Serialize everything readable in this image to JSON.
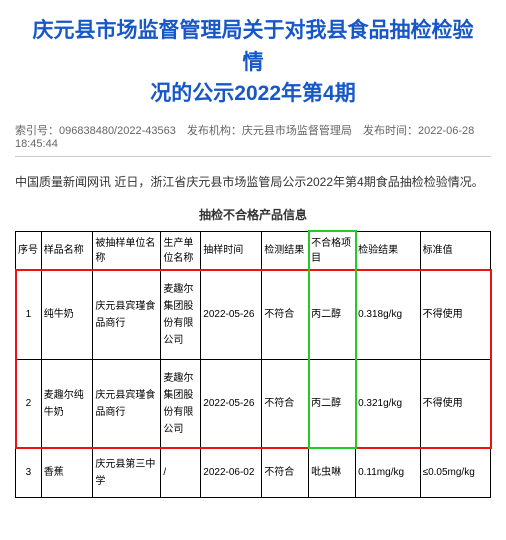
{
  "doc": {
    "title_line1": "庆元县市场监督管理局关于对我县食品抽检检验情",
    "title_line2": "况的公示2022年第4期",
    "index_label": "索引号：",
    "index_value": "096838480/2022-43563",
    "org_label": "发布机构：",
    "org_value": "庆元县市场监督管理局",
    "time_label": "发布时间：",
    "time_value": "2022-06-28 18:45:44",
    "intro": "中国质量新闻网讯 近日，浙江省庆元县市场监管局公示2022年第4期食品抽检检验情况。",
    "table_title": "抽检不合格产品信息"
  },
  "table": {
    "headers": {
      "seq": "序号",
      "name": "样品名称",
      "unit": "被抽样单位名称",
      "prod": "生产单位名称",
      "date": "抽样时间",
      "result": "检测结果",
      "item": "不合格项目",
      "value": "检验结果",
      "standard": "标准值"
    },
    "rows": [
      {
        "seq": "1",
        "name": "纯牛奶",
        "unit": "庆元县宾瑾食品商行",
        "prod": "麦趣尔集团股份有限公司",
        "date": "2022-05-26",
        "result": "不符合",
        "item": "丙二醇",
        "value": "0.318g/kg",
        "standard": "不得使用"
      },
      {
        "seq": "2",
        "name": "麦趣尔纯牛奶",
        "unit": "庆元县宾瑾食品商行",
        "prod": "麦趣尔集团股份有限公司",
        "date": "2022-05-26",
        "result": "不符合",
        "item": "丙二醇",
        "value": "0.321g/kg",
        "standard": "不得使用"
      },
      {
        "seq": "3",
        "name": "香蕉",
        "unit": "庆元县第三中学",
        "prod": "/",
        "date": "2022-06-02",
        "result": "不符合",
        "item": "吡虫啉",
        "value": "0.11mg/kg",
        "standard": "≤0.05mg/kg"
      }
    ]
  }
}
